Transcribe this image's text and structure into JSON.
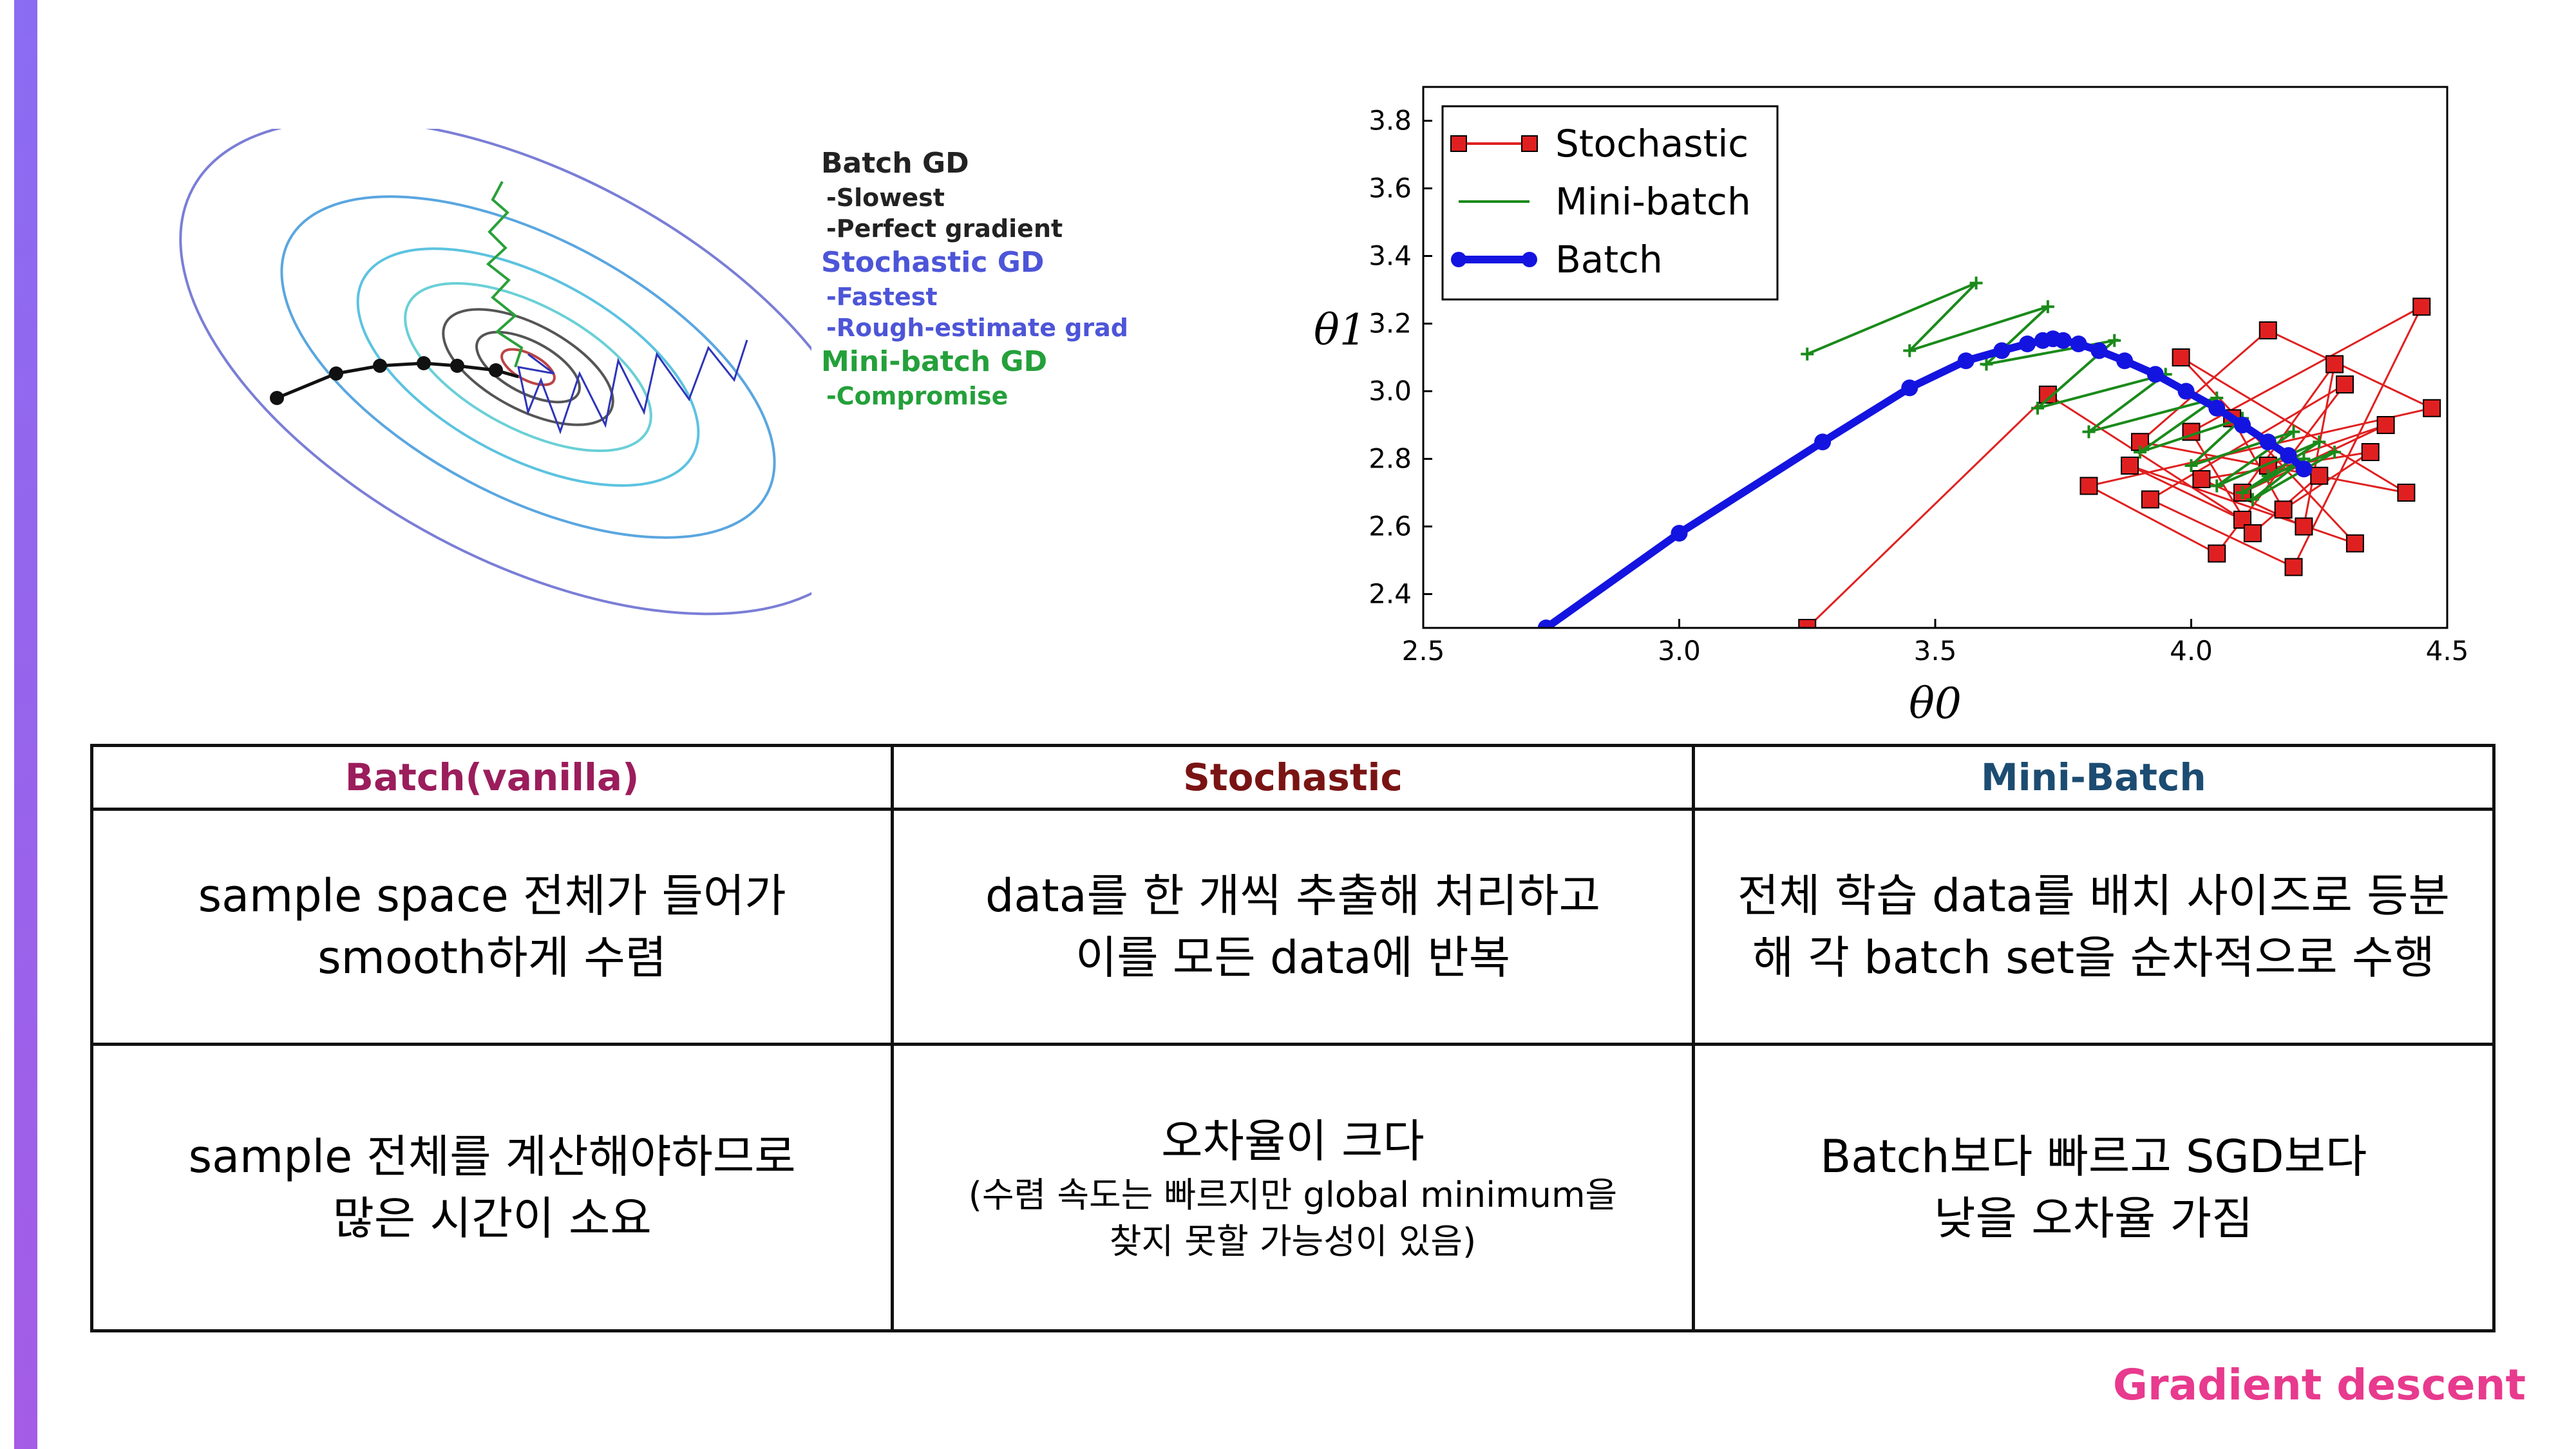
{
  "contour_legend": {
    "batch": {
      "title": "Batch GD",
      "items": [
        "-Slowest",
        "-Perfect gradient"
      ]
    },
    "stochastic": {
      "title": "Stochastic GD",
      "items": [
        "-Fastest",
        "-Rough-estimate grad"
      ]
    },
    "minibatch": {
      "title": "Mini-batch GD",
      "items": [
        "-Compromise"
      ]
    }
  },
  "chart_data": {
    "type": "line",
    "xlabel": "θ0",
    "ylabel": "θ1",
    "xlim": [
      2.5,
      4.5
    ],
    "ylim": [
      2.3,
      3.9
    ],
    "x_ticks": [
      "2.5",
      "3.0",
      "3.5",
      "4.0",
      "4.5"
    ],
    "y_ticks": [
      "2.4",
      "2.6",
      "2.8",
      "3.0",
      "3.2",
      "3.4",
      "3.6",
      "3.8"
    ],
    "legend_position": "top-left",
    "series": [
      {
        "name": "Stochastic",
        "color": "#e02020",
        "marker": "square",
        "x": [
          3.25,
          3.72,
          4.1,
          3.88,
          4.32,
          3.98,
          4.42,
          3.9,
          4.15,
          4.47,
          3.8,
          4.05,
          4.3,
          3.92,
          4.2,
          4.45,
          4.0,
          4.12,
          4.25,
          4.08,
          4.18,
          4.35,
          4.02,
          4.22,
          4.28,
          4.1,
          4.38,
          4.15
        ],
        "y": [
          2.3,
          2.99,
          2.62,
          2.78,
          2.55,
          3.1,
          2.7,
          2.85,
          3.18,
          2.95,
          2.72,
          2.52,
          3.02,
          2.68,
          2.48,
          3.25,
          2.88,
          2.58,
          2.75,
          2.92,
          2.65,
          2.82,
          2.74,
          2.6,
          3.08,
          2.7,
          2.9,
          2.78
        ]
      },
      {
        "name": "Mini-batch",
        "color": "#1a8a1a",
        "marker": "plus",
        "x": [
          3.25,
          3.58,
          3.45,
          3.72,
          3.6,
          3.85,
          3.7,
          3.95,
          3.8,
          4.05,
          3.9,
          4.1,
          4.0,
          4.2,
          4.05,
          4.25,
          4.1,
          4.22,
          4.12,
          4.28,
          4.15
        ],
        "y": [
          3.11,
          3.32,
          3.12,
          3.25,
          3.08,
          3.15,
          2.95,
          3.05,
          2.88,
          2.98,
          2.82,
          2.92,
          2.78,
          2.88,
          2.72,
          2.85,
          2.7,
          2.8,
          2.68,
          2.82,
          2.75
        ]
      },
      {
        "name": "Batch",
        "color": "#1414e0",
        "marker": "circle",
        "x": [
          2.74,
          3.0,
          3.28,
          3.45,
          3.56,
          3.63,
          3.68,
          3.71,
          3.73,
          3.75,
          3.78,
          3.82,
          3.87,
          3.93,
          3.99,
          4.05,
          4.1,
          4.15,
          4.19,
          4.22
        ],
        "y": [
          2.3,
          2.58,
          2.85,
          3.01,
          3.09,
          3.12,
          3.14,
          3.15,
          3.155,
          3.15,
          3.14,
          3.12,
          3.09,
          3.05,
          3.0,
          2.95,
          2.9,
          2.85,
          2.81,
          2.77
        ]
      }
    ]
  },
  "table": {
    "headers": [
      "Batch(vanilla)",
      "Stochastic",
      "Mini-Batch"
    ],
    "header_colors": [
      "#9b1d5c",
      "#7a1414",
      "#1c4c72"
    ],
    "row1": {
      "batch": [
        "sample space 전체가 들어가",
        "smooth하게 수렴"
      ],
      "stochastic": [
        "data를 한 개씩 추출해 처리하고",
        "이를 모든 data에 반복"
      ],
      "minibatch": [
        "전체 학습 data를 배치 사이즈로 등분",
        "해 각 batch set을 순차적으로 수행"
      ]
    },
    "row2": {
      "batch": [
        "sample 전체를 계산해야하므로",
        "많은 시간이 소요"
      ],
      "stochastic": {
        "main": "오차율이 크다",
        "note": [
          "(수렴 속도는 빠르지만 global minimum을",
          "찾지 못할 가능성이 있음)"
        ]
      },
      "minibatch": [
        "Batch보다 빠르고 SGD보다",
        "낮을 오차율 가짐"
      ]
    }
  },
  "footer": {
    "title": "Gradient descent"
  },
  "colors": {
    "accent_bar": "#9a64ec",
    "footer": "#e83a8e"
  }
}
